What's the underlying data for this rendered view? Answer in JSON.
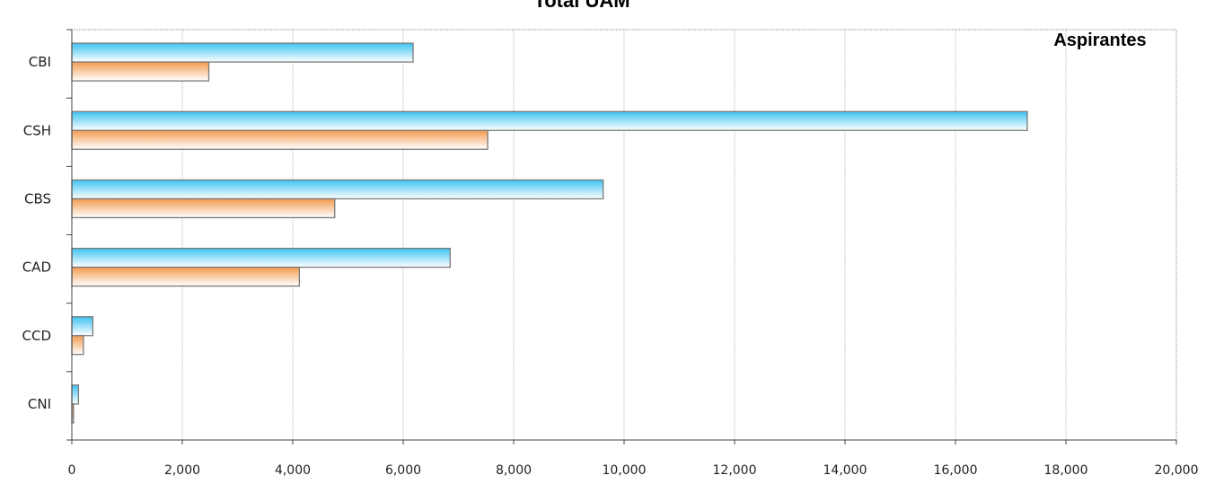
{
  "chart_data": {
    "type": "bar",
    "orientation": "horizontal",
    "title": "Total UAM",
    "legend_title": "Aspirantes",
    "legend_position": "top-right",
    "categories": [
      "CBI",
      "CSH",
      "CBS",
      "CAD",
      "CCD",
      "CNI"
    ],
    "series": [
      {
        "values": [
          6180,
          17300,
          9620,
          6850,
          380,
          120
        ],
        "color": "#3ec3f2"
      },
      {
        "values": [
          2480,
          7530,
          4760,
          4120,
          210,
          30
        ],
        "color": "#f39a4f"
      }
    ],
    "xlim": [
      0,
      20000
    ],
    "xticks": [
      0,
      2000,
      4000,
      6000,
      8000,
      10000,
      12000,
      14000,
      16000,
      18000,
      20000
    ],
    "xtick_labels": [
      "0",
      "2,000",
      "4,000",
      "6,000",
      "8,000",
      "10,000",
      "12,000",
      "14,000",
      "16,000",
      "18,000",
      "20,000"
    ],
    "grid": true,
    "xlabel": "",
    "ylabel": ""
  }
}
